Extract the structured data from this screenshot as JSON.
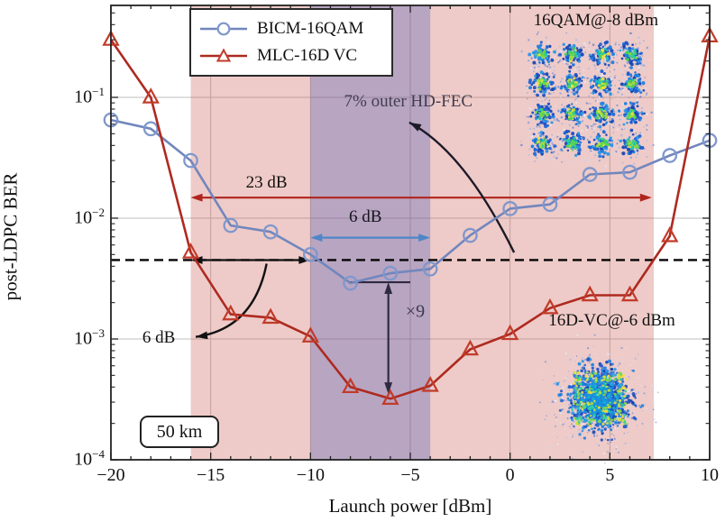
{
  "figure": {
    "xlabel": "Launch power [dBm]",
    "ylabel": "post-LDPC BER",
    "distance_badge": "50 km"
  },
  "chart_data": {
    "type": "line",
    "x_axis_label": "Launch power [dBm]",
    "y_axis_label": "post-LDPC BER",
    "x_range": [
      -20,
      10
    ],
    "y_scale": "log",
    "y_range": [
      0.0001,
      0.577
    ],
    "xticks": [
      -20,
      -15,
      -10,
      -5,
      0,
      5,
      10
    ],
    "yticks": [
      0.1,
      0.01,
      0.001,
      0.0001
    ],
    "grid": "on",
    "x": [
      -20,
      -18,
      -16,
      -14,
      -12,
      -10,
      -8,
      -6,
      -4,
      -2,
      0,
      2,
      4,
      6,
      8,
      10
    ],
    "series": [
      {
        "name": "BICM-16QAM",
        "marker": "circle",
        "color": "#7286bd",
        "marker_color": "#7f97cd",
        "values": [
          0.065,
          0.055,
          0.03,
          0.0087,
          0.0077,
          0.005,
          0.0029,
          0.0035,
          0.0038,
          0.0072,
          0.012,
          0.013,
          0.023,
          0.024,
          0.033,
          0.044
        ]
      },
      {
        "name": "MLC-16D VC",
        "marker": "triangle",
        "color": "#ae2a20",
        "marker_color": "#c23b2a",
        "values": [
          0.3,
          0.1,
          0.0052,
          0.0016,
          0.0015,
          0.00105,
          0.0004,
          0.00032,
          0.00041,
          0.00082,
          0.0011,
          0.0018,
          0.0023,
          0.0023,
          0.0071,
          0.32
        ]
      }
    ],
    "threshold": {
      "y": 0.0045,
      "style": "dashed",
      "color": "#050505"
    },
    "bands": [
      {
        "x1": -16,
        "x2": 7.2,
        "color": "rgba(201,92,85,0.32)"
      },
      {
        "x1": -10,
        "x2": -4,
        "color": "rgba(80,90,180,0.34)"
      }
    ],
    "annotations": [
      {
        "text": "7% outer HD-FEC",
        "x": -5.1,
        "y": 0.092,
        "color": "#423d4f"
      },
      {
        "text": "23 dB",
        "x": -12.2,
        "y": 0.0196,
        "color": "#111111",
        "arrow": {
          "x1": -16,
          "x2": 7.1,
          "y": 0.0148,
          "color": "#b0251c",
          "heads": "both"
        }
      },
      {
        "text": "6 dB",
        "x": -7.25,
        "y": 0.0101,
        "color": "#16161e",
        "arrow": {
          "x1": -10,
          "x2": -4,
          "y": 0.0069,
          "color": "#4e86c8",
          "heads": "both"
        }
      },
      {
        "text": "6 dB",
        "x": -17.6,
        "y": 0.00102,
        "color": "#111111",
        "arrow": {
          "x1": -16,
          "x2": -10,
          "y": 0.0045,
          "color": "#111111",
          "heads": "both"
        }
      },
      {
        "text": "×9",
        "x": -4.75,
        "y": 0.00168,
        "color": "#3c3850",
        "arrow": {
          "orient": "vertical",
          "x": -6.1,
          "y1": 0.00295,
          "y2": 0.00035,
          "color": "#2e2a40",
          "heads": "both",
          "bar": {
            "x1": -8,
            "x2": -5,
            "y": 0.00295
          }
        }
      },
      {
        "text": "16QAM@-8 dBm",
        "x": 4.3,
        "y": 0.43,
        "color": "#111111"
      },
      {
        "text": "16D-VC@-6 dBm",
        "x": 5.1,
        "y": 0.00141,
        "color": "#111111"
      }
    ],
    "pointers": [
      {
        "from": {
          "x": 0.2,
          "y": 0.0052
        },
        "ctrl": {
          "x": -2.3,
          "y": 0.0357
        },
        "to": {
          "x": -5.05,
          "y": 0.062
        },
        "color": "#1d1a28"
      },
      {
        "from": {
          "x": -12.2,
          "y": 0.0042
        },
        "ctrl": {
          "x": -12.85,
          "y": 0.00121
        },
        "to": {
          "x": -15.75,
          "y": 0.00104
        },
        "color": "#111111"
      }
    ],
    "insets": [
      {
        "name": "16QAM constellation",
        "type": "qam16",
        "caption": "16QAM@-8 dBm",
        "x": 3.86,
        "y": 0.0967
      },
      {
        "name": "16D-VC constellation",
        "type": "blob",
        "caption": "16D-VC@-6 dBm",
        "x": 4.45,
        "y": 0.00032
      }
    ]
  }
}
